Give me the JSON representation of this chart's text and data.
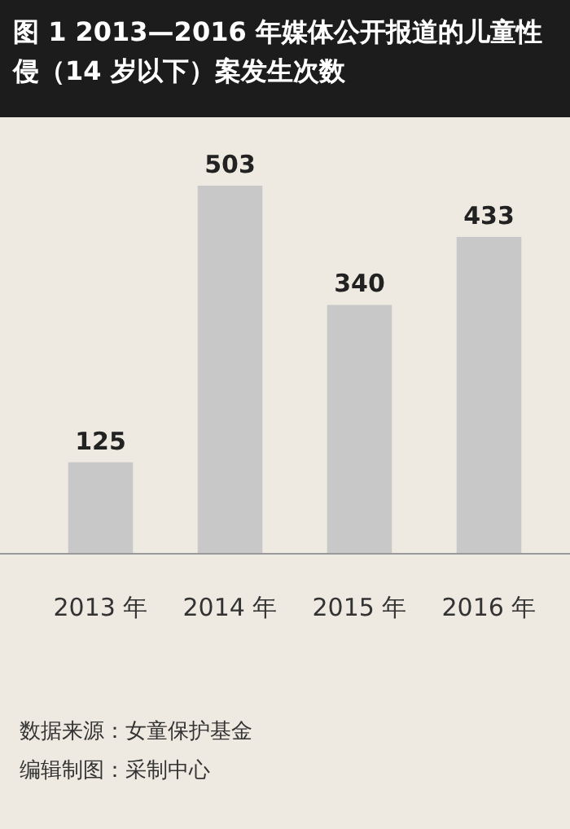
{
  "chart_data": {
    "type": "bar",
    "title": "图 1  2013—2016 年媒体公开报道的儿童性侵（14 岁以下）案发生次数",
    "categories": [
      "2013 年",
      "2014 年",
      "2015 年",
      "2016 年"
    ],
    "values": [
      125,
      503,
      340,
      433
    ],
    "color": "#c8c8c8",
    "data_labels": true,
    "annotations": [
      "数据来源：女童保护基金",
      "编辑制图：采制中心"
    ]
  }
}
